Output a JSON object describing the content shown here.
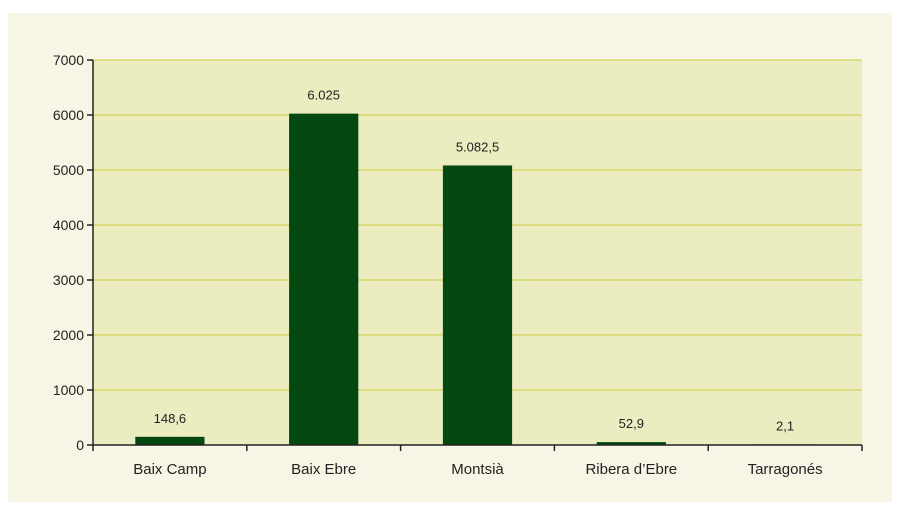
{
  "colors": {
    "panel_background": "#f7f6e6",
    "plot_background": "#ebecc0",
    "gridline": "#c9cc3a",
    "bar": "#034711",
    "axis": "#222222"
  },
  "chart_data": {
    "type": "bar",
    "title": "",
    "xlabel": "",
    "ylabel": "",
    "categories": [
      "Baix Camp",
      "Baix Ebre",
      "Montsià",
      "Ribera d’Ebre",
      "Tarragonés"
    ],
    "values": [
      148.6,
      6025,
      5082.5,
      52.9,
      2.1
    ],
    "data_labels": [
      "148,6",
      "6.025",
      "5.082,5",
      "52,9",
      "2,1"
    ],
    "ylim": [
      0,
      7000
    ],
    "yticks": [
      0,
      1000,
      2000,
      3000,
      4000,
      5000,
      6000,
      7000
    ],
    "ytick_labels": [
      "0",
      "1000",
      "2000",
      "3000",
      "4000",
      "5000",
      "6000",
      "7000"
    ],
    "grid": true,
    "legend": "none"
  }
}
